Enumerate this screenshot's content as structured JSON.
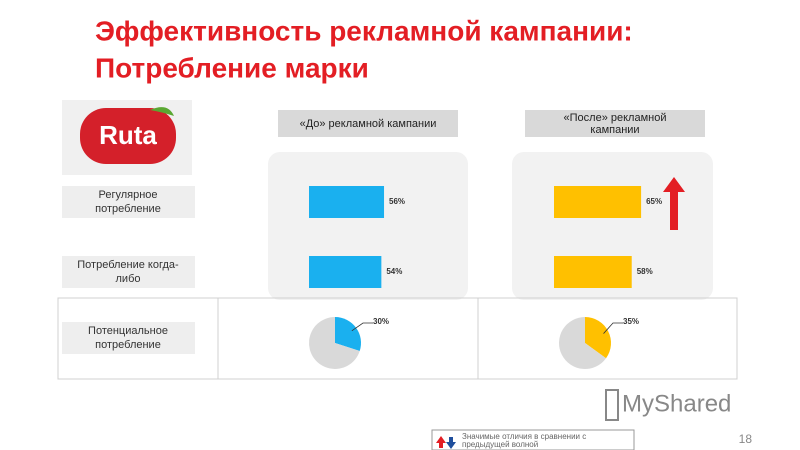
{
  "title_lines": [
    "Эффективность рекламной кампании:",
    "Потребление марки"
  ],
  "logo": "Ruta",
  "row_labels": [
    [
      "Регулярное",
      "потребление"
    ],
    [
      "Потребление когда-",
      "либо"
    ],
    [
      "Потенциальное",
      "потребление"
    ]
  ],
  "legend_note": [
    "Значимые отличия в сравнении с",
    "предыдущей волной"
  ],
  "page_number": "18",
  "watermark": "MyShared",
  "chart_data": [
    {
      "type": "bar",
      "title": [
        "«До» рекламной кампании"
      ],
      "values": [
        56,
        54
      ],
      "value_labels": [
        "56%",
        "54%"
      ],
      "color": "#1ab0ef",
      "xlim": [
        0,
        100
      ]
    },
    {
      "type": "bar",
      "title": [
        "«После» рекламной",
        "кампании"
      ],
      "values": [
        65,
        58
      ],
      "value_labels": [
        "65%",
        "58%"
      ],
      "color": "#ffc000",
      "xlim": [
        0,
        100
      ]
    },
    {
      "type": "pie",
      "values": [
        30,
        70
      ],
      "value_label": "30%",
      "colors": [
        "#1ab0ef",
        "#d9d9d9"
      ]
    },
    {
      "type": "pie",
      "values": [
        35,
        65
      ],
      "value_label": "35%",
      "colors": [
        "#ffc000",
        "#d9d9d9"
      ]
    }
  ]
}
